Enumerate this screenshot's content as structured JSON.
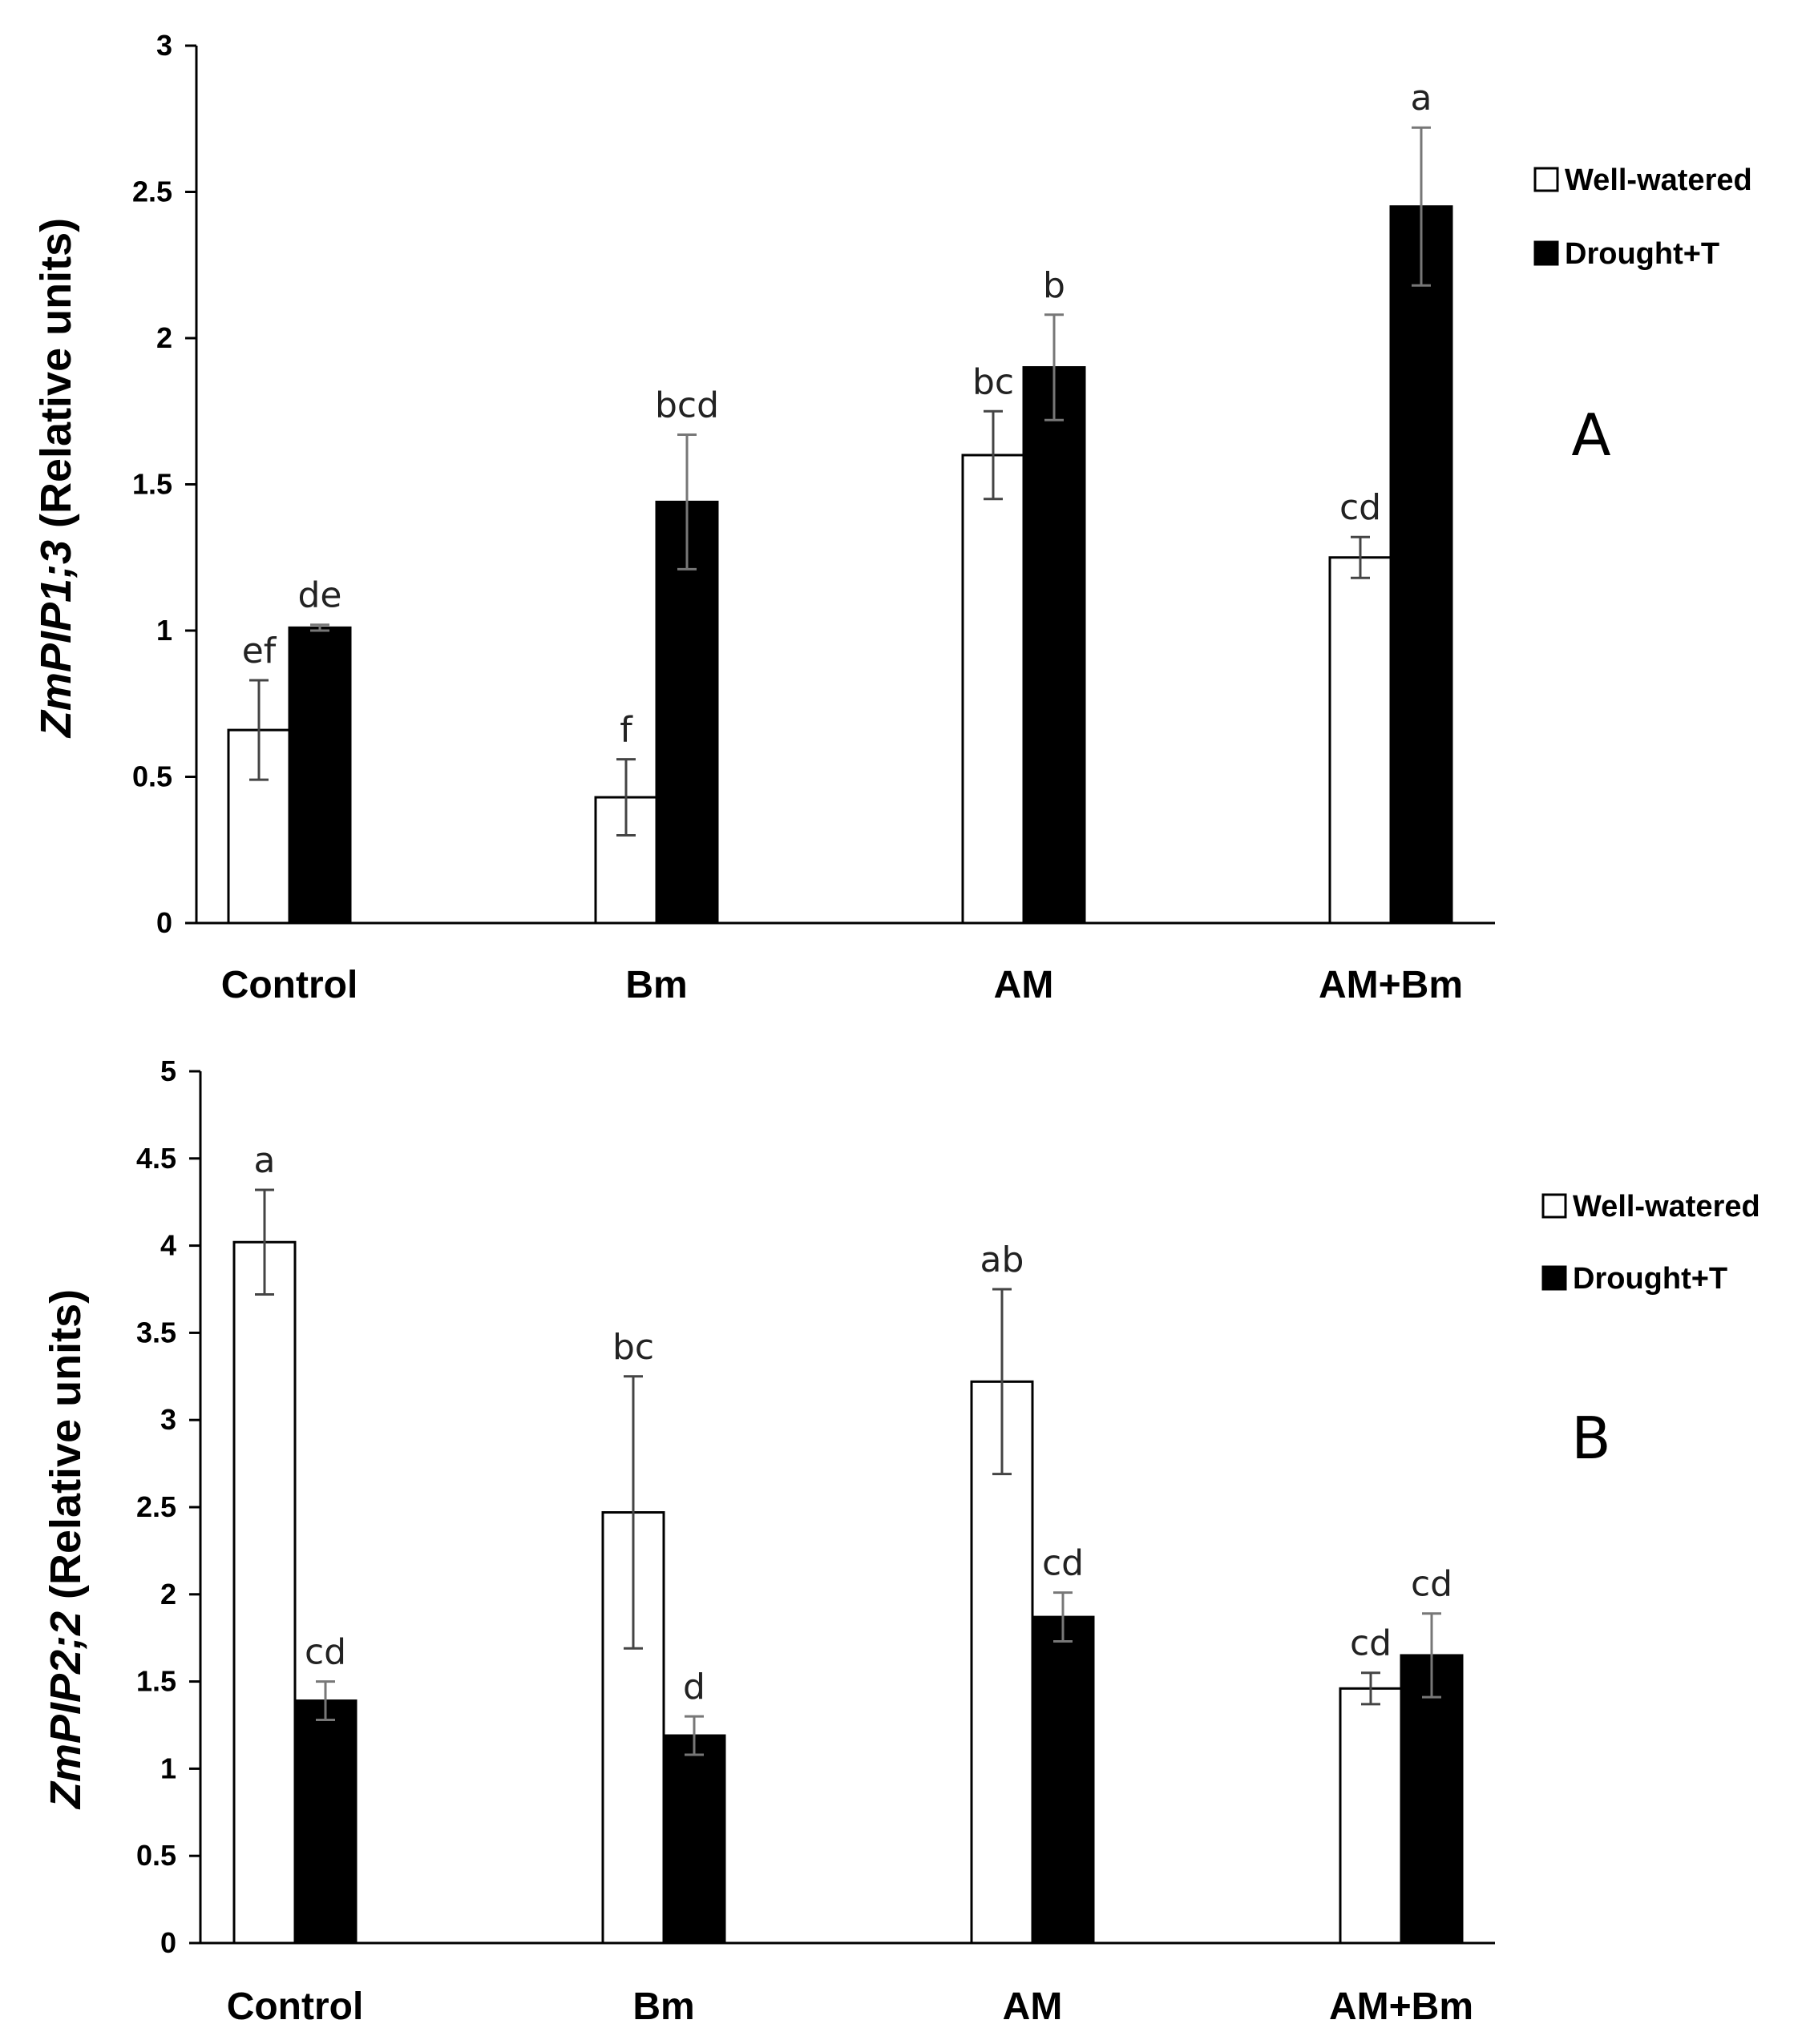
{
  "chart_data": [
    {
      "type": "bar",
      "panel_label": "A",
      "ylabel_gene": "ZmPIP1;3",
      "ylabel_units": " (Relative units)",
      "ylim": [
        0,
        3
      ],
      "yticks": [
        0,
        0.5,
        1,
        1.5,
        2,
        2.5,
        3
      ],
      "ytick_labels": [
        "0",
        "0.5",
        "1",
        "1.5",
        "2",
        "2.5",
        "3"
      ],
      "categories": [
        "Control",
        "Bm",
        "AM",
        "AM+Bm"
      ],
      "series": [
        {
          "name": "Well-watered",
          "color": "#ffffff",
          "values": [
            0.66,
            0.43,
            1.6,
            1.25
          ],
          "errors": [
            0.17,
            0.13,
            0.15,
            0.07
          ],
          "labels": [
            "ef",
            "f",
            "bc",
            "cd"
          ]
        },
        {
          "name": "Drought+T",
          "color": "#000000",
          "values": [
            1.01,
            1.44,
            1.9,
            2.45
          ],
          "errors": [
            0.01,
            0.23,
            0.18,
            0.27
          ],
          "labels": [
            "de",
            "bcd",
            "b",
            "a"
          ]
        }
      ],
      "legend_position": "right"
    },
    {
      "type": "bar",
      "panel_label": "B",
      "ylabel_gene": "ZmPIP2;2",
      "ylabel_units": " (Relative units)",
      "ylim": [
        0,
        5
      ],
      "yticks": [
        0,
        0.5,
        1,
        1.5,
        2,
        2.5,
        3,
        3.5,
        4,
        4.5,
        5
      ],
      "ytick_labels": [
        "0",
        "0.5",
        "1",
        "1.5",
        "2",
        "2.5",
        "3",
        "3.5",
        "4",
        "4.5",
        "5"
      ],
      "categories": [
        "Control",
        "Bm",
        "AM",
        "AM+Bm"
      ],
      "series": [
        {
          "name": "Well-watered",
          "color": "#ffffff",
          "values": [
            4.02,
            2.47,
            3.22,
            1.46
          ],
          "errors": [
            0.3,
            0.78,
            0.53,
            0.09
          ],
          "labels": [
            "a",
            "bc",
            "ab",
            "cd"
          ]
        },
        {
          "name": "Drought+T",
          "color": "#000000",
          "values": [
            1.39,
            1.19,
            1.87,
            1.65
          ],
          "errors": [
            0.11,
            0.11,
            0.14,
            0.24
          ],
          "labels": [
            "cd",
            "d",
            "cd",
            "cd"
          ]
        }
      ],
      "legend_position": "right"
    }
  ]
}
